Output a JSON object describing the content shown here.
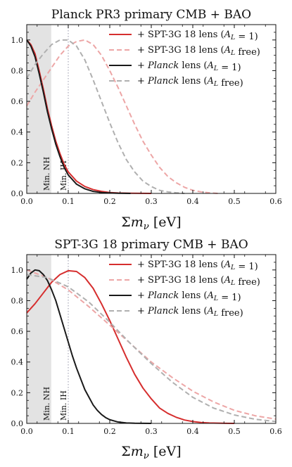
{
  "chart_data": [
    {
      "type": "line",
      "title": "Planck PR3 primary CMB + BAO",
      "xlabel": "Σm_ν [eV]",
      "ylabel": "",
      "xlim": [
        0,
        0.6
      ],
      "ylim": [
        0,
        1.1
      ],
      "xticks": [
        "0.0",
        "0.1",
        "0.2",
        "0.3",
        "0.4",
        "0.5",
        "0.6"
      ],
      "yticks": [
        "0.0",
        "0.2",
        "0.4",
        "0.6",
        "0.8",
        "1.0"
      ],
      "grid": false,
      "legend_position": "top-right",
      "shaded_region": {
        "x": [
          0,
          0.059
        ]
      },
      "vlines": [
        {
          "x": 0.059,
          "label": "Min. NH"
        },
        {
          "x": 0.1,
          "label": "Min. IH"
        }
      ],
      "series": [
        {
          "name": "+ SPT-3G 18 lens (A_L = 1)",
          "color": "#d62e2e",
          "style": "solid",
          "x": [
            0,
            0.01,
            0.02,
            0.03,
            0.04,
            0.05,
            0.06,
            0.07,
            0.08,
            0.09,
            0.1,
            0.12,
            0.14,
            0.16,
            0.18,
            0.2,
            0.22,
            0.25,
            0.3
          ],
          "y": [
            1.0,
            0.97,
            0.91,
            0.8,
            0.68,
            0.55,
            0.44,
            0.34,
            0.26,
            0.19,
            0.14,
            0.08,
            0.045,
            0.025,
            0.013,
            0.006,
            0.003,
            0.001,
            0
          ]
        },
        {
          "name": "+ SPT-3G 18 lens (A_L free)",
          "color": "#eda6a6",
          "style": "dashed",
          "x": [
            0,
            0.02,
            0.04,
            0.06,
            0.08,
            0.1,
            0.12,
            0.14,
            0.16,
            0.18,
            0.2,
            0.22,
            0.24,
            0.26,
            0.28,
            0.3,
            0.32,
            0.34,
            0.36,
            0.38,
            0.4,
            0.42,
            0.44,
            0.46
          ],
          "y": [
            0.57,
            0.66,
            0.74,
            0.82,
            0.9,
            0.96,
            0.99,
            1.0,
            0.97,
            0.9,
            0.8,
            0.69,
            0.57,
            0.45,
            0.34,
            0.25,
            0.17,
            0.11,
            0.07,
            0.04,
            0.02,
            0.01,
            0.004,
            0
          ]
        },
        {
          "name": "+ Planck lens (A_L = 1)",
          "color": "#1a1a1a",
          "style": "solid",
          "x": [
            0,
            0.01,
            0.02,
            0.03,
            0.04,
            0.05,
            0.06,
            0.07,
            0.08,
            0.09,
            0.1,
            0.12,
            0.14,
            0.16,
            0.18,
            0.2,
            0.22,
            0.25
          ],
          "y": [
            1.0,
            0.96,
            0.89,
            0.78,
            0.66,
            0.53,
            0.42,
            0.32,
            0.24,
            0.17,
            0.12,
            0.06,
            0.03,
            0.013,
            0.006,
            0.003,
            0.001,
            0
          ]
        },
        {
          "name": "+ Planck lens (A_L free)",
          "color": "#b0b0b0",
          "style": "dashed",
          "x": [
            0,
            0.02,
            0.04,
            0.06,
            0.08,
            0.1,
            0.12,
            0.14,
            0.16,
            0.18,
            0.2,
            0.22,
            0.24,
            0.26,
            0.28,
            0.3,
            0.32,
            0.34,
            0.36,
            0.38
          ],
          "y": [
            0.75,
            0.84,
            0.91,
            0.97,
            1.0,
            1.0,
            0.96,
            0.87,
            0.74,
            0.6,
            0.46,
            0.33,
            0.22,
            0.14,
            0.08,
            0.045,
            0.02,
            0.01,
            0.004,
            0
          ]
        }
      ]
    },
    {
      "type": "line",
      "title": "SPT-3G 18 primary CMB + BAO",
      "xlabel": "Σm_ν [eV]",
      "ylabel": "",
      "xlim": [
        0,
        0.6
      ],
      "ylim": [
        0,
        1.1
      ],
      "xticks": [
        "0.0",
        "0.1",
        "0.2",
        "0.3",
        "0.4",
        "0.5",
        "0.6"
      ],
      "yticks": [
        "0.0",
        "0.2",
        "0.4",
        "0.6",
        "0.8",
        "1.0"
      ],
      "grid": false,
      "legend_position": "top-right",
      "shaded_region": {
        "x": [
          0,
          0.059
        ]
      },
      "vlines": [
        {
          "x": 0.059,
          "label": "Min. NH"
        },
        {
          "x": 0.1,
          "label": "Min. IH"
        }
      ],
      "series": [
        {
          "name": "+ SPT-3G 18 lens (A_L = 1)",
          "color": "#d62e2e",
          "style": "solid",
          "x": [
            0,
            0.02,
            0.04,
            0.06,
            0.08,
            0.1,
            0.12,
            0.14,
            0.16,
            0.18,
            0.2,
            0.22,
            0.24,
            0.26,
            0.28,
            0.3,
            0.32,
            0.34,
            0.36,
            0.38,
            0.4,
            0.42,
            0.44,
            0.46,
            0.48,
            0.5
          ],
          "y": [
            0.72,
            0.78,
            0.85,
            0.92,
            0.97,
            0.995,
            0.99,
            0.95,
            0.88,
            0.78,
            0.67,
            0.55,
            0.43,
            0.32,
            0.23,
            0.16,
            0.1,
            0.065,
            0.04,
            0.022,
            0.012,
            0.006,
            0.003,
            0.0015,
            0.0005,
            0
          ]
        },
        {
          "name": "+ SPT-3G 18 lens (A_L free)",
          "color": "#eda6a6",
          "style": "dashed",
          "x": [
            0,
            0.05,
            0.1,
            0.15,
            0.2,
            0.25,
            0.3,
            0.35,
            0.4,
            0.45,
            0.5,
            0.55,
            0.6
          ],
          "y": [
            1.0,
            0.95,
            0.87,
            0.76,
            0.64,
            0.52,
            0.4,
            0.3,
            0.21,
            0.14,
            0.085,
            0.05,
            0.028
          ]
        },
        {
          "name": "+ Planck lens (A_L = 1)",
          "color": "#1a1a1a",
          "style": "solid",
          "x": [
            0,
            0.01,
            0.02,
            0.03,
            0.04,
            0.05,
            0.06,
            0.07,
            0.08,
            0.09,
            0.1,
            0.11,
            0.12,
            0.13,
            0.14,
            0.15,
            0.16,
            0.17,
            0.18,
            0.19,
            0.2,
            0.22,
            0.24,
            0.26,
            0.28,
            0.3
          ],
          "y": [
            0.94,
            0.98,
            1.0,
            0.995,
            0.97,
            0.93,
            0.87,
            0.8,
            0.71,
            0.62,
            0.53,
            0.44,
            0.36,
            0.29,
            0.22,
            0.17,
            0.12,
            0.085,
            0.058,
            0.038,
            0.024,
            0.009,
            0.003,
            0.001,
            0.0003,
            0
          ]
        },
        {
          "name": "+ Planck lens (A_L free)",
          "color": "#b0b0b0",
          "style": "dashed",
          "x": [
            0,
            0.05,
            0.1,
            0.15,
            0.2,
            0.25,
            0.3,
            0.35,
            0.4,
            0.45,
            0.5,
            0.55,
            0.6
          ],
          "y": [
            0.97,
            0.95,
            0.89,
            0.79,
            0.66,
            0.52,
            0.39,
            0.27,
            0.17,
            0.1,
            0.055,
            0.027,
            0.012
          ]
        }
      ]
    }
  ]
}
